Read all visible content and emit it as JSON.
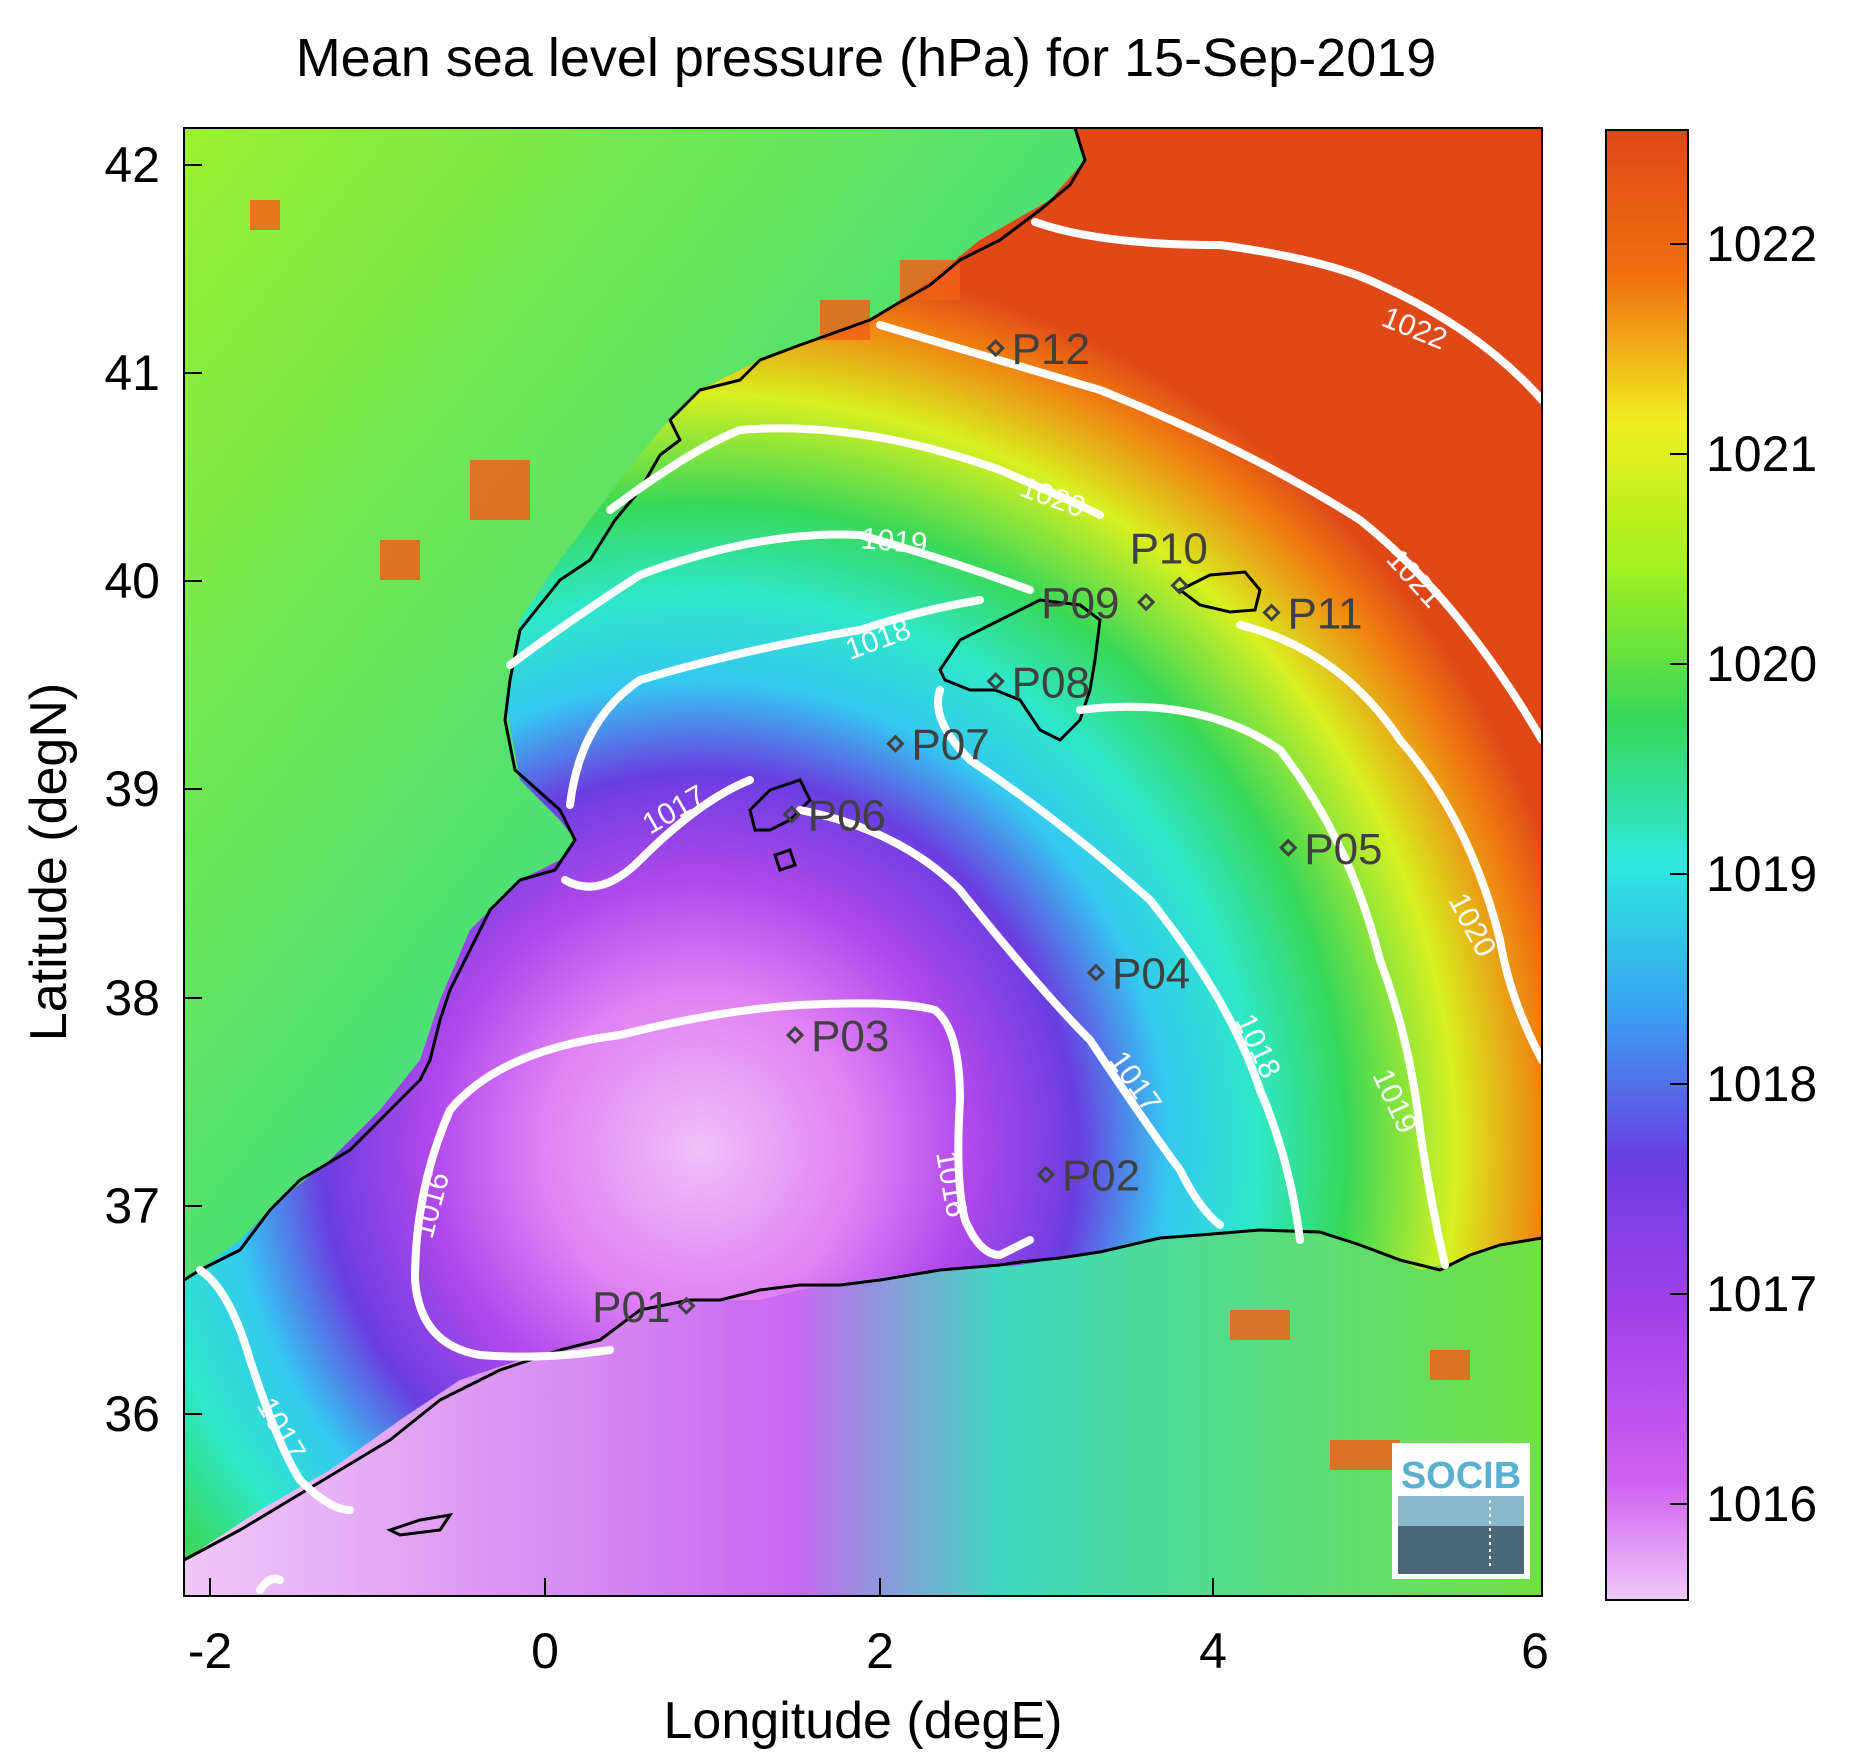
{
  "figure": {
    "title": "Mean sea level pressure (hPa) for 15-Sep-2019",
    "xlabel": "Longitude (degE)",
    "ylabel": "Latitude (degN)",
    "xticks": [
      "-2",
      "0",
      "2",
      "4",
      "6"
    ],
    "yticks": [
      "42",
      "41",
      "40",
      "39",
      "38",
      "37",
      "36"
    ],
    "xlim": [
      -2.2,
      6.0
    ],
    "ylim": [
      35.15,
      42.2
    ]
  },
  "colorbar": {
    "ticks": [
      "1022",
      "1021",
      "1020",
      "1019",
      "1018",
      "1017",
      "1016"
    ],
    "range": [
      1015.6,
      1022.6
    ],
    "colors": [
      "#f0c8f8",
      "#c040f0",
      "#6a3ee0",
      "#2ee8e0",
      "#38d858",
      "#f0f020",
      "#f07010",
      "#e04818"
    ]
  },
  "contour_labels": [
    {
      "text": "1022"
    },
    {
      "text": "1021"
    },
    {
      "text": "1020"
    },
    {
      "text": "1020"
    },
    {
      "text": "1019"
    },
    {
      "text": "1019"
    },
    {
      "text": "1018"
    },
    {
      "text": "1018"
    },
    {
      "text": "1017"
    },
    {
      "text": "1017"
    },
    {
      "text": "1017"
    },
    {
      "text": "1016"
    },
    {
      "text": "1016"
    }
  ],
  "stations": [
    {
      "name": "P01",
      "lon": 0.85,
      "lat": 36.52
    },
    {
      "name": "P02",
      "lon": 3.0,
      "lat": 37.15
    },
    {
      "name": "P03",
      "lon": 1.5,
      "lat": 37.82
    },
    {
      "name": "P04",
      "lon": 3.3,
      "lat": 38.12
    },
    {
      "name": "P05",
      "lon": 4.45,
      "lat": 38.72
    },
    {
      "name": "P06",
      "lon": 1.48,
      "lat": 38.88
    },
    {
      "name": "P07",
      "lon": 2.1,
      "lat": 39.22
    },
    {
      "name": "P08",
      "lon": 2.7,
      "lat": 39.52
    },
    {
      "name": "P09",
      "lon": 3.6,
      "lat": 39.9
    },
    {
      "name": "P10",
      "lon": 3.8,
      "lat": 39.98
    },
    {
      "name": "P11",
      "lon": 4.35,
      "lat": 39.85
    },
    {
      "name": "P12",
      "lon": 2.7,
      "lat": 41.12
    }
  ],
  "logo": {
    "text": "SOCIB"
  }
}
